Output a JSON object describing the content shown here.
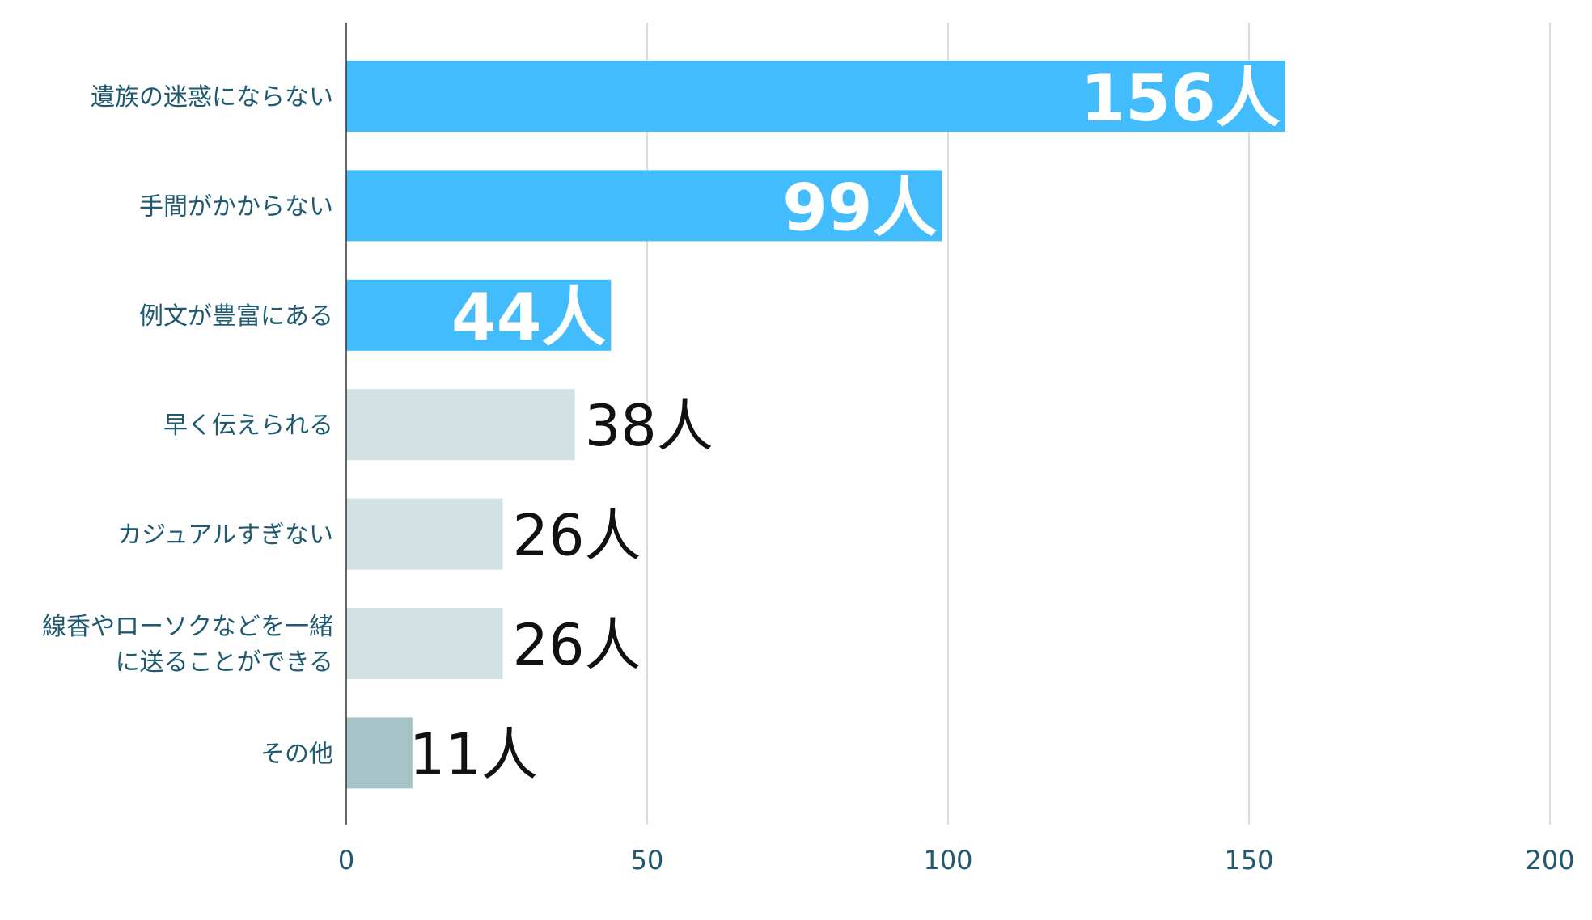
{
  "chart_data": {
    "type": "bar",
    "orientation": "horizontal",
    "categories": [
      [
        "遺族の迷惑にならない"
      ],
      [
        "手間がかからない"
      ],
      [
        "例文が豊富にある"
      ],
      [
        "早く伝えられる"
      ],
      [
        "カジュアルすぎない"
      ],
      [
        "線香やローソクなどを一緒",
        "に送ることができる"
      ],
      [
        "その他"
      ]
    ],
    "values": [
      156,
      99,
      44,
      38,
      26,
      26,
      11
    ],
    "value_labels": [
      "156人",
      "99人",
      "44人",
      "38人",
      "26人",
      "26人",
      "11人"
    ],
    "xlim": [
      0,
      200
    ],
    "xticks": [
      0,
      50,
      100,
      150,
      200
    ],
    "xtick_labels": [
      "0",
      "50",
      "100",
      "150",
      "200"
    ],
    "grid": "vertical",
    "colors": {
      "highlight": "#43bcfd",
      "normal": "#d2e1e4",
      "other": "#a6c4c8",
      "grid": "#d0d0d0",
      "axis": "#333333"
    },
    "bar_styles": [
      "highlight",
      "highlight",
      "highlight",
      "normal",
      "normal",
      "normal",
      "other"
    ]
  }
}
